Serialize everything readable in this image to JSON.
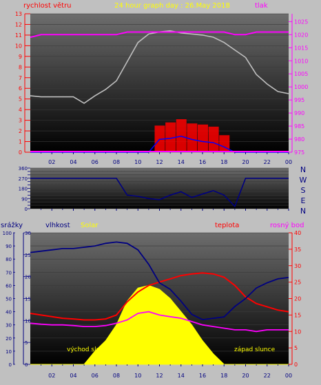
{
  "labels": {
    "top_title": "24 hour graph day : 26.May 2018",
    "wind_label": "rychlost větru",
    "pressure_label": "tlak",
    "rain_label": "srážky",
    "humidity_label": "vlhkost",
    "solar_label": "Solar",
    "temp_label": "teplota",
    "dew_label": "rosný bod",
    "sunrise_label": "východ slunce",
    "sunset_label": "západ slunce",
    "compass": [
      "N",
      "W",
      "S",
      "E",
      "N"
    ]
  },
  "colors": {
    "background": "#c0c0c0",
    "plot_top": "#6a6a6a",
    "plot_bottom": "#000000",
    "wind_axis": "#ff0000",
    "pressure_axis": "#ff00ff",
    "title": "#ffff00",
    "humidity": "#000080",
    "solar": "#ffff00",
    "temperature": "#ff0000",
    "dew_point": "#ff00ff",
    "pressure_line": "#ff00ff",
    "wind_avg": "#0000ff",
    "wind_gust": "#ff0000",
    "wind_dir": "#000080",
    "gray_series": "#c0c0c0"
  },
  "x_ticks": [
    "02",
    "04",
    "06",
    "08",
    "10",
    "12",
    "14",
    "16",
    "18",
    "20",
    "22",
    "00"
  ],
  "chart_data": [
    {
      "type": "line",
      "name": "wind_pressure",
      "x": [
        0,
        1,
        2,
        3,
        4,
        5,
        6,
        7,
        8,
        9,
        10,
        11,
        12,
        13,
        14,
        15,
        16,
        17,
        18,
        19,
        20,
        21,
        22,
        23,
        24
      ],
      "left_axis": {
        "label": "rychlost větru",
        "ylim": [
          0,
          13
        ],
        "ticks": [
          0,
          1,
          2,
          3,
          4,
          5,
          6,
          7,
          8,
          9,
          10,
          11,
          12,
          13
        ]
      },
      "right_axis": {
        "label": "tlak",
        "ylim": [
          975,
          1028
        ],
        "ticks": [
          975,
          980,
          985,
          990,
          995,
          1000,
          1005,
          1010,
          1015,
          1020,
          1025
        ]
      },
      "series": [
        {
          "name": "tlak",
          "axis": "right",
          "values": [
            1019,
            1020,
            1020,
            1020,
            1020,
            1020,
            1020,
            1020,
            1020,
            1021,
            1021,
            1021,
            1021,
            1021,
            1021,
            1021,
            1021,
            1021,
            1021,
            1020,
            1020,
            1021,
            1021,
            1021,
            1021
          ]
        },
        {
          "axis": "left",
          "values": [
            5.3,
            5.2,
            5.2,
            5.2,
            5.2,
            4.6,
            5.3,
            5.9,
            6.7,
            8.5,
            10.3,
            11.1,
            11.3,
            11.4,
            11.2,
            11.1,
            11.0,
            10.8,
            10.3,
            9.6,
            8.9,
            7.3,
            6.4,
            5.7,
            5.5
          ]
        },
        {
          "axis": "left",
          "values": [
            0,
            0,
            0,
            0,
            0,
            0,
            0,
            0,
            0,
            0,
            0,
            0,
            2.5,
            2.8,
            3.1,
            2.7,
            2.6,
            2.4,
            1.6,
            0,
            0,
            0,
            0,
            0,
            0
          ]
        },
        {
          "axis": "left",
          "values": [
            0,
            0,
            0,
            0,
            0,
            0,
            0,
            0,
            0,
            0,
            0,
            0,
            1.2,
            1.3,
            1.5,
            1.2,
            1.0,
            0.9,
            0.5,
            0,
            0,
            0,
            0,
            0,
            0
          ]
        }
      ]
    },
    {
      "type": "line",
      "name": "wind_direction",
      "ylim": [
        0,
        360
      ],
      "y_ticks": [
        0,
        30,
        60,
        90,
        120,
        150,
        180,
        210,
        240,
        270,
        300,
        330,
        360
      ],
      "x": [
        0,
        1,
        2,
        3,
        4,
        5,
        6,
        7,
        8,
        9,
        10,
        11,
        12,
        13,
        14,
        15,
        16,
        17,
        18,
        19,
        20,
        21,
        22,
        23,
        24
      ],
      "series": [
        {
          "values": [
            270,
            270,
            270,
            270,
            270,
            270,
            270,
            270,
            270,
            120,
            110,
            90,
            80,
            120,
            150,
            100,
            130,
            160,
            120,
            20,
            270,
            270,
            270,
            270,
            270
          ]
        }
      ]
    },
    {
      "type": "line",
      "name": "temperature_humidity_solar",
      "left_axis_rain": {
        "label": "srážky",
        "ylim": [
          0,
          100
        ],
        "ticks": [
          0,
          10,
          20,
          30,
          40,
          50,
          60,
          70,
          80,
          90,
          100
        ]
      },
      "left_axis_humidity": {
        "label": "vlhkost",
        "ylim": [
          0,
          30
        ],
        "ticks": [
          0,
          5,
          10,
          15,
          20,
          25,
          30
        ]
      },
      "right_axis": {
        "label": "teplota",
        "ylim": [
          0,
          40
        ],
        "ticks": [
          0,
          5,
          10,
          15,
          20,
          25,
          30,
          35,
          40
        ]
      },
      "x": [
        0,
        1,
        2,
        3,
        4,
        5,
        6,
        7,
        8,
        9,
        10,
        11,
        12,
        13,
        14,
        15,
        16,
        17,
        18,
        19,
        20,
        21,
        22,
        23,
        24
      ],
      "series": [
        {
          "name": "vlhkost",
          "axis": "rain",
          "values": [
            85,
            86,
            87,
            88,
            88,
            89,
            90,
            92,
            93,
            92,
            87,
            76,
            62,
            57,
            48,
            38,
            34,
            35,
            36,
            44,
            50,
            58,
            62,
            65,
            66
          ]
        },
        {
          "name": "teplota",
          "axis": "right",
          "values": [
            15.5,
            15.0,
            14.5,
            14.0,
            13.8,
            13.5,
            13.5,
            13.8,
            15.0,
            19.0,
            22.0,
            24.0,
            25.0,
            26.0,
            27.0,
            27.5,
            27.8,
            27.5,
            26.5,
            24.0,
            20.5,
            18.5,
            17.5,
            16.5,
            16.0
          ]
        },
        {
          "name": "rosný bod",
          "axis": "right",
          "values": [
            12.5,
            12.2,
            12.0,
            12.0,
            11.8,
            11.5,
            11.5,
            11.8,
            12.5,
            13.5,
            15.5,
            16.0,
            15.0,
            14.5,
            14.0,
            13.0,
            12.0,
            11.5,
            11.0,
            10.5,
            10.5,
            10.0,
            10.5,
            10.5,
            10.5
          ]
        },
        {
          "name": "Solar",
          "axis": "rain",
          "values": [
            0,
            0,
            0,
            0,
            0,
            0,
            10,
            18,
            30,
            48,
            58,
            60,
            57,
            50,
            40,
            30,
            18,
            8,
            0,
            0,
            0,
            0,
            0,
            0,
            0
          ]
        }
      ]
    }
  ]
}
